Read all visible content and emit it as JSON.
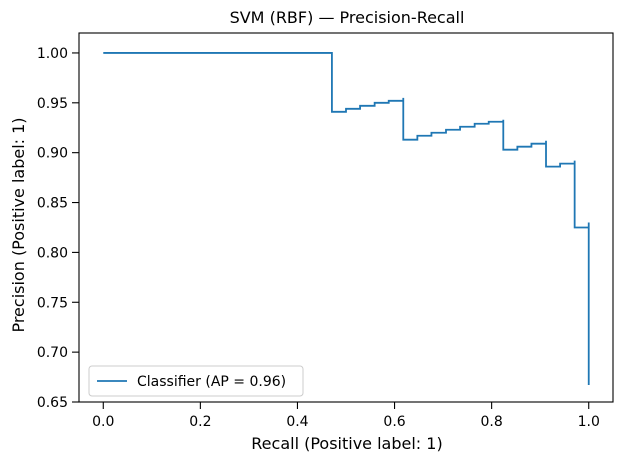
{
  "chart_data": {
    "type": "line",
    "title": "SVM (RBF) — Precision-Recall",
    "xlabel": "Recall (Positive label: 1)",
    "ylabel": "Precision (Positive label: 1)",
    "xlim": [
      -0.05,
      1.05
    ],
    "ylim": [
      0.65,
      1.02
    ],
    "xticks": [
      0.0,
      0.2,
      0.4,
      0.6,
      0.8,
      1.0
    ],
    "xtick_labels": [
      "0.0",
      "0.2",
      "0.4",
      "0.6",
      "0.8",
      "1.0"
    ],
    "yticks": [
      0.65,
      0.7,
      0.75,
      0.8,
      0.85,
      0.9,
      0.95,
      1.0
    ],
    "ytick_labels": [
      "0.65",
      "0.70",
      "0.75",
      "0.80",
      "0.85",
      "0.90",
      "0.95",
      "1.00"
    ],
    "grid": false,
    "legend_position": "lower-left",
    "series": [
      {
        "name": "Classifier (AP = 0.96)",
        "color": "#1f77b4",
        "drawstyle": "steps-post",
        "recall": [
          0.0,
          0.471,
          0.471,
          0.5,
          0.529,
          0.559,
          0.588,
          0.618,
          0.618,
          0.647,
          0.676,
          0.706,
          0.735,
          0.765,
          0.794,
          0.824,
          0.824,
          0.853,
          0.882,
          0.912,
          0.912,
          0.941,
          0.971,
          0.971,
          1.0,
          1.0
        ],
        "precision": [
          1.0,
          1.0,
          0.941,
          0.944,
          0.947,
          0.95,
          0.952,
          0.955,
          0.913,
          0.917,
          0.92,
          0.923,
          0.926,
          0.929,
          0.931,
          0.933,
          0.903,
          0.906,
          0.909,
          0.912,
          0.886,
          0.889,
          0.892,
          0.825,
          0.83,
          0.667
        ]
      }
    ]
  }
}
